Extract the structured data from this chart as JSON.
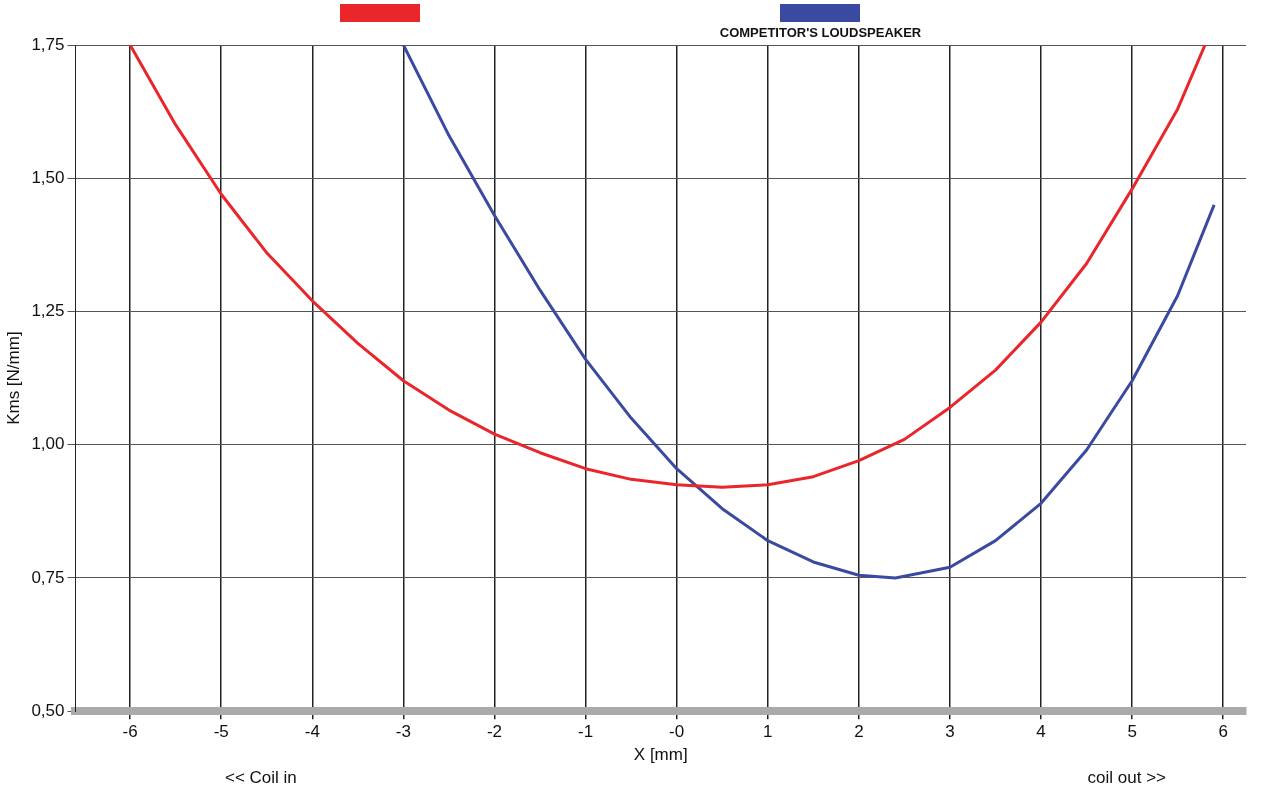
{
  "chart_data": {
    "type": "line",
    "xlabel": "X [mm]",
    "ylabel": "Kms [N/mm]",
    "annotations": [
      "<< Coil in",
      "coil out >>"
    ],
    "series": [
      {
        "color": "#e8262b",
        "x": [
          -6,
          -5.5,
          -5,
          -4.5,
          -4,
          -3.5,
          -3,
          -2.5,
          -2,
          -1.5,
          -1,
          -0.5,
          0,
          0.5,
          1,
          1.5,
          2,
          2.5,
          3,
          3.5,
          4,
          4.5,
          5,
          5.5,
          5.8
        ],
        "values": [
          1.75,
          1.6,
          1.47,
          1.36,
          1.27,
          1.19,
          1.12,
          1.065,
          1.02,
          0.985,
          0.955,
          0.935,
          0.925,
          0.92,
          0.925,
          0.94,
          0.97,
          1.01,
          1.07,
          1.14,
          1.23,
          1.34,
          1.48,
          1.63,
          1.75
        ]
      },
      {
        "name": "COMPETITOR'S LOUDSPEAKER",
        "color": "#3a4aa0",
        "x": [
          -3,
          -2.5,
          -2,
          -1.5,
          -1,
          -0.5,
          0,
          0.5,
          1,
          1.5,
          2,
          2.4,
          3,
          3.5,
          4,
          4.5,
          5,
          5.5,
          5.9
        ],
        "values": [
          1.75,
          1.58,
          1.43,
          1.29,
          1.16,
          1.05,
          0.955,
          0.88,
          0.82,
          0.78,
          0.755,
          0.75,
          0.77,
          0.82,
          0.89,
          0.99,
          1.12,
          1.28,
          1.45
        ]
      }
    ],
    "xlim": [
      -6.6,
      6.25
    ],
    "xticks": [
      -6,
      -5,
      -4,
      -3,
      -2,
      -1,
      {
        "value": 0,
        "label": "-0"
      },
      1,
      2,
      3,
      4,
      5,
      6
    ],
    "ylim": [
      0.5,
      1.75
    ],
    "yticks": [
      {
        "value": 0.5,
        "label": "0,50"
      },
      {
        "value": 0.75,
        "label": "0,75"
      },
      {
        "value": 1,
        "label": "1,00"
      },
      {
        "value": 1.25,
        "label": "1,25"
      },
      {
        "value": 1.5,
        "label": "1,50"
      },
      {
        "value": 1.75,
        "label": "1,75"
      }
    ],
    "grid": true,
    "legend": "top",
    "marker": "none",
    "line_style": "solid"
  }
}
